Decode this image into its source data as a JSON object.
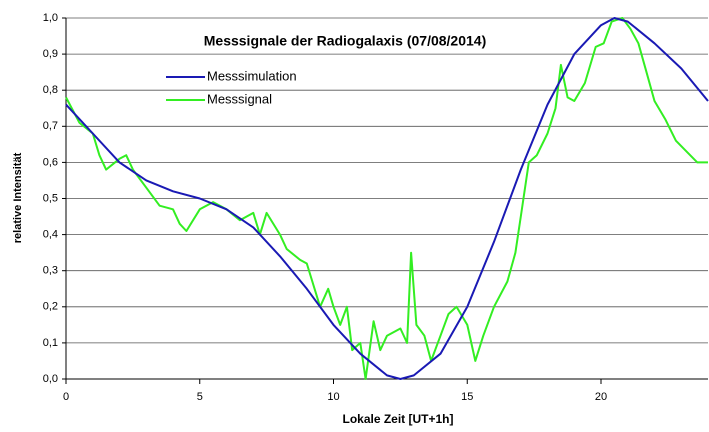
{
  "chart_data": {
    "type": "line",
    "title": "Messsignale der Radiogalaxis (07/08/2014)",
    "xlabel": "Lokale Zeit [UT+1h]",
    "ylabel": "relative Intensität",
    "xlim": [
      0,
      24
    ],
    "ylim": [
      0,
      1.0
    ],
    "xticks": [
      0,
      5,
      10,
      15,
      20
    ],
    "yticks": [
      {
        "value": 0,
        "label": "0,0"
      },
      {
        "value": 0.1,
        "label": "0,1"
      },
      {
        "value": 0.2,
        "label": "0,2"
      },
      {
        "value": 0.3,
        "label": "0,3"
      },
      {
        "value": 0.4,
        "label": "0,4"
      },
      {
        "value": 0.5,
        "label": "0,5"
      },
      {
        "value": 0.6,
        "label": "0,6"
      },
      {
        "value": 0.7,
        "label": "0,7"
      },
      {
        "value": 0.8,
        "label": "0,8"
      },
      {
        "value": 0.9,
        "label": "0,9"
      },
      {
        "value": 1.0,
        "label": "1,0"
      }
    ],
    "grid": true,
    "legend": "upper left",
    "series": [
      {
        "name": "Messsimulation",
        "color": "#1a1ab4",
        "x": [
          0,
          1,
          2,
          3,
          4,
          5,
          6,
          7,
          8,
          9,
          10,
          11,
          12,
          12.5,
          13,
          14,
          15,
          16,
          17,
          18,
          19,
          20,
          20.5,
          21,
          22,
          23,
          24
        ],
        "values": [
          0.76,
          0.68,
          0.6,
          0.55,
          0.52,
          0.5,
          0.47,
          0.42,
          0.34,
          0.25,
          0.15,
          0.07,
          0.01,
          0.0,
          0.01,
          0.07,
          0.2,
          0.38,
          0.58,
          0.76,
          0.9,
          0.98,
          1.0,
          0.99,
          0.93,
          0.86,
          0.77
        ]
      },
      {
        "name": "Messsignal",
        "color": "#33ee22",
        "x": [
          0,
          0.5,
          1,
          1.25,
          1.5,
          2,
          2.25,
          2.5,
          3,
          3.5,
          4,
          4.25,
          4.5,
          5,
          5.5,
          6,
          6.5,
          7,
          7.25,
          7.5,
          8,
          8.25,
          8.75,
          9,
          9.5,
          9.8,
          10,
          10.25,
          10.5,
          10.7,
          11,
          11.2,
          11.5,
          11.75,
          12,
          12.5,
          12.75,
          12.9,
          13.1,
          13.4,
          13.65,
          14,
          14.3,
          14.6,
          15,
          15.3,
          15.6,
          16,
          16.5,
          16.8,
          17,
          17.3,
          17.6,
          18,
          18.3,
          18.5,
          18.75,
          19,
          19.4,
          19.8,
          20.1,
          20.4,
          20.8,
          21.1,
          21.4,
          21.7,
          22,
          22.4,
          22.8,
          23.2,
          23.6,
          24
        ],
        "values": [
          0.78,
          0.71,
          0.68,
          0.62,
          0.58,
          0.61,
          0.62,
          0.58,
          0.53,
          0.48,
          0.47,
          0.43,
          0.41,
          0.47,
          0.49,
          0.47,
          0.44,
          0.46,
          0.4,
          0.46,
          0.4,
          0.36,
          0.33,
          0.32,
          0.2,
          0.25,
          0.2,
          0.15,
          0.2,
          0.08,
          0.1,
          0.0,
          0.16,
          0.08,
          0.12,
          0.14,
          0.1,
          0.35,
          0.15,
          0.12,
          0.05,
          0.12,
          0.18,
          0.2,
          0.15,
          0.05,
          0.12,
          0.2,
          0.27,
          0.35,
          0.45,
          0.6,
          0.62,
          0.68,
          0.75,
          0.87,
          0.78,
          0.77,
          0.82,
          0.92,
          0.93,
          0.99,
          1.0,
          0.97,
          0.93,
          0.85,
          0.77,
          0.72,
          0.66,
          0.63,
          0.6,
          0.6
        ]
      }
    ]
  }
}
